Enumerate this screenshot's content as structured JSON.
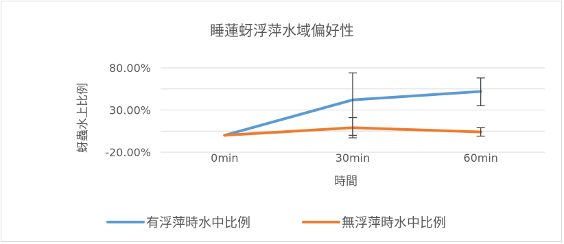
{
  "chart_data": {
    "type": "line",
    "title": "睡蓮蚜浮萍水域偏好性",
    "xlabel": "時間",
    "ylabel": "蚜蟲水上比例",
    "categories": [
      "0min",
      "30min",
      "60min"
    ],
    "ylim": [
      -0.2,
      0.8
    ],
    "yticks": [
      -0.2,
      0.3,
      0.8
    ],
    "ytick_labels": [
      "-20.00%",
      "30.00%",
      "80.00%"
    ],
    "grid": true,
    "legend_position": "bottom",
    "series": [
      {
        "name": "有浮萍時水中比例",
        "color": "#5b9bd5",
        "values": [
          0.0,
          0.42,
          0.52
        ],
        "error_low": [
          null,
          0.42,
          0.17
        ],
        "error_high": [
          null,
          0.32,
          0.16
        ]
      },
      {
        "name": "無浮萍時水中比例",
        "color": "#ed7d31",
        "values": [
          0.0,
          0.09,
          0.04
        ],
        "error_low": [
          null,
          0.12,
          0.05
        ],
        "error_high": [
          null,
          0.12,
          0.05
        ]
      }
    ]
  }
}
